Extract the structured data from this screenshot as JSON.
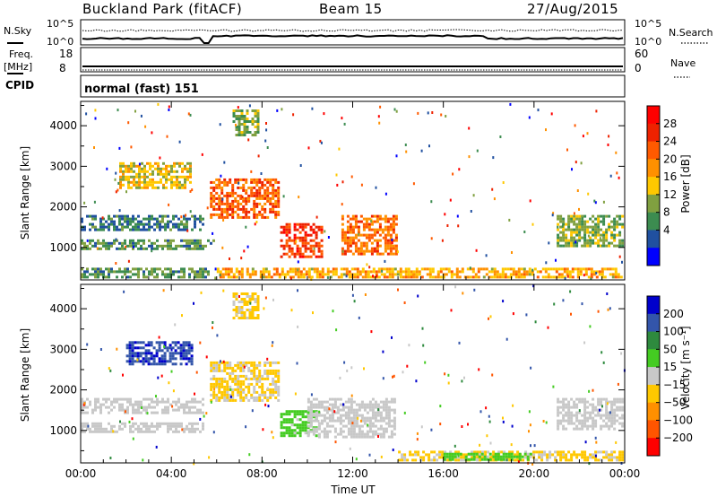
{
  "header": {
    "station": "Buckland Park (fitACF)",
    "beam": "Beam 15",
    "date": "27/Aug/2015"
  },
  "strip_noise": {
    "left_label": "N.Sky",
    "right_label": "N.Search",
    "left_ticks": [
      "10^5",
      "10^0"
    ],
    "right_ticks": [
      "10^5",
      "10^0"
    ]
  },
  "strip_freq": {
    "left_label": "Freq.",
    "left_unit": "[MHz]",
    "left_ticks": [
      "18",
      "8"
    ],
    "right_label": "Nave",
    "right_ticks": [
      "60",
      "0"
    ]
  },
  "strip_cpid": {
    "label": "CPID",
    "text": "normal (fast) 151"
  },
  "axis_ylabel": "Slant Range [km]",
  "axis_xlabel": "Time UT",
  "colorbar_power": {
    "label": "Power [dB]",
    "ticks": [
      "28",
      "24",
      "20",
      "16",
      "12",
      "8",
      "4"
    ],
    "colors": [
      "#ff0000",
      "#ee2200",
      "#ff5a00",
      "#ff9000",
      "#ffc800",
      "#80a040",
      "#3c8c50",
      "#2050a0",
      "#0000ff"
    ]
  },
  "colorbar_velocity": {
    "label": "Velocity [m s⁻¹]",
    "ticks": [
      "200",
      "100",
      "50",
      "15",
      "−15",
      "−50",
      "−100",
      "−200"
    ],
    "colors": [
      "#0000cc",
      "#3355aa",
      "#2e8a3e",
      "#44cc22",
      "#c8c8c8",
      "#ffc800",
      "#ff9000",
      "#ff5500",
      "#ff0000"
    ]
  },
  "chart_data": [
    {
      "type": "heatmap",
      "title": "Power",
      "xlabel": "Time UT",
      "ylabel": "Slant Range [km]",
      "x_ticks": [
        "00:00",
        "04:00",
        "08:00",
        "12:00",
        "16:00",
        "20:00",
        "00:00"
      ],
      "y_ticks": [
        1000,
        2000,
        3000,
        4000
      ],
      "xlim": [
        0,
        24
      ],
      "ylim": [
        200,
        4600
      ],
      "colorbar_label": "Power [dB]",
      "colorbar_range": [
        0,
        32
      ],
      "regions": [
        {
          "t0": 0.0,
          "t1": 5.7,
          "r0": 200,
          "r1": 500,
          "level": 10
        },
        {
          "t0": 0.0,
          "t1": 6.0,
          "r0": 900,
          "r1": 1200,
          "level": 10
        },
        {
          "t0": 0.0,
          "t1": 5.5,
          "r0": 1400,
          "r1": 1800,
          "level": 8
        },
        {
          "t0": 1.7,
          "t1": 5.0,
          "r0": 2400,
          "r1": 3100,
          "level": 16
        },
        {
          "t0": 5.7,
          "t1": 8.8,
          "r0": 1700,
          "r1": 2700,
          "level": 23
        },
        {
          "t0": 6.7,
          "t1": 8.0,
          "r0": 3700,
          "r1": 4400,
          "level": 12
        },
        {
          "t0": 8.8,
          "t1": 10.8,
          "r0": 700,
          "r1": 1600,
          "level": 26
        },
        {
          "t0": 11.5,
          "t1": 14.0,
          "r0": 800,
          "r1": 1800,
          "level": 22
        },
        {
          "t0": 21.0,
          "t1": 24.0,
          "r0": 1000,
          "r1": 1800,
          "level": 12
        },
        {
          "t0": 6.0,
          "t1": 24.0,
          "r0": 200,
          "r1": 500,
          "level": 18
        }
      ]
    },
    {
      "type": "heatmap",
      "title": "Velocity",
      "xlabel": "Time UT",
      "ylabel": "Slant Range [km]",
      "x_ticks": [
        "00:00",
        "04:00",
        "08:00",
        "12:00",
        "16:00",
        "20:00",
        "00:00"
      ],
      "y_ticks": [
        1000,
        2000,
        3000,
        4000
      ],
      "xlim": [
        0,
        24
      ],
      "ylim": [
        200,
        4600
      ],
      "colorbar_label": "Velocity [m s⁻¹]",
      "colorbar_range": [
        -200,
        200
      ],
      "regions": [
        {
          "t0": 0.0,
          "t1": 5.5,
          "r0": 900,
          "r1": 1200,
          "level": 0
        },
        {
          "t0": 0.0,
          "t1": 5.5,
          "r0": 1400,
          "r1": 1800,
          "level": 0
        },
        {
          "t0": 2.0,
          "t1": 5.0,
          "r0": 2600,
          "r1": 3200,
          "level": 150
        },
        {
          "t0": 5.7,
          "t1": 8.8,
          "r0": 1700,
          "r1": 2700,
          "level": -30
        },
        {
          "t0": 6.7,
          "t1": 8.0,
          "r0": 3700,
          "r1": 4400,
          "level": -30
        },
        {
          "t0": 8.8,
          "t1": 10.5,
          "r0": 800,
          "r1": 1500,
          "level": 40
        },
        {
          "t0": 10.0,
          "t1": 14.0,
          "r0": 800,
          "r1": 1800,
          "level": 0
        },
        {
          "t0": 14.0,
          "t1": 24.0,
          "r0": 200,
          "r1": 500,
          "level": -30
        },
        {
          "t0": 16.0,
          "t1": 20.0,
          "r0": 250,
          "r1": 450,
          "level": 40
        },
        {
          "t0": 21.0,
          "t1": 24.0,
          "r0": 1000,
          "r1": 1800,
          "level": 0
        }
      ]
    }
  ]
}
